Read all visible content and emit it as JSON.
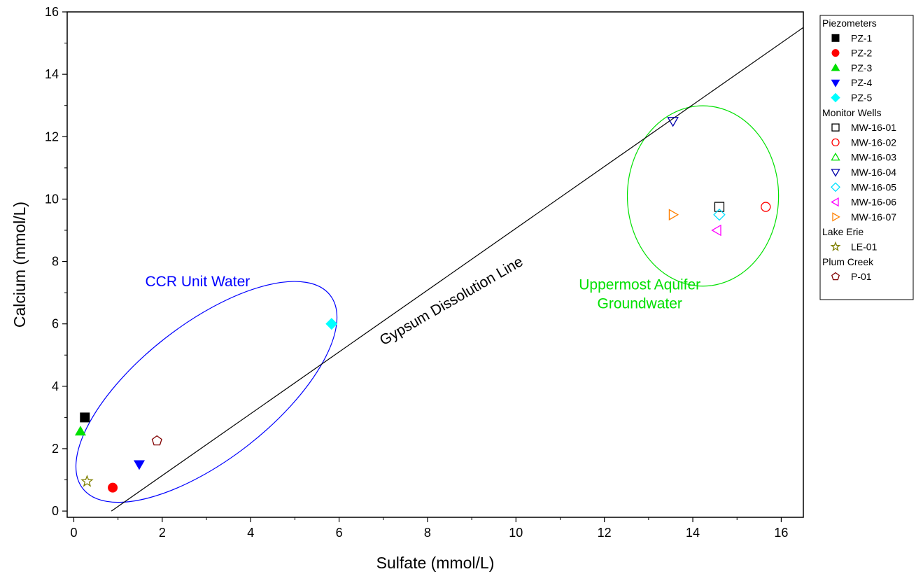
{
  "chart_data": {
    "type": "scatter",
    "xlabel": "Sulfate (mmol/L)",
    "ylabel": "Calcium (mmol/L)",
    "xlim": [
      -0.15,
      16.5
    ],
    "ylim": [
      -0.2,
      16
    ],
    "xticks": [
      0,
      2,
      4,
      6,
      8,
      10,
      12,
      14,
      16
    ],
    "yticks": [
      0,
      2,
      4,
      6,
      8,
      10,
      12,
      14,
      16
    ],
    "grid": false,
    "legend_placement": "outside-right",
    "legend": [
      {
        "type": "group",
        "label": "Piezometers"
      },
      {
        "type": "item",
        "series": 0
      },
      {
        "type": "item",
        "series": 1
      },
      {
        "type": "item",
        "series": 2
      },
      {
        "type": "item",
        "series": 3
      },
      {
        "type": "item",
        "series": 4
      },
      {
        "type": "group",
        "label": "Monitor Wells"
      },
      {
        "type": "item",
        "series": 5
      },
      {
        "type": "item",
        "series": 6
      },
      {
        "type": "item",
        "series": 7
      },
      {
        "type": "item",
        "series": 8
      },
      {
        "type": "item",
        "series": 9
      },
      {
        "type": "item",
        "series": 10
      },
      {
        "type": "item",
        "series": 11
      },
      {
        "type": "group",
        "label": "Lake Erie"
      },
      {
        "type": "item",
        "series": 12
      },
      {
        "type": "group",
        "label": "Plum Creek"
      },
      {
        "type": "item",
        "series": 13
      }
    ],
    "series": [
      {
        "name": "PZ-1",
        "marker": "square",
        "filled": true,
        "color": "#000000",
        "points": [
          [
            0.25,
            3.0
          ]
        ]
      },
      {
        "name": "PZ-2",
        "marker": "circle",
        "filled": true,
        "color": "#ff0000",
        "points": [
          [
            0.88,
            0.75
          ]
        ]
      },
      {
        "name": "PZ-3",
        "marker": "triangle-up",
        "filled": true,
        "color": "#00e000",
        "points": [
          [
            0.15,
            2.55
          ]
        ]
      },
      {
        "name": "PZ-4",
        "marker": "triangle-down",
        "filled": true,
        "color": "#0000ff",
        "points": [
          [
            1.48,
            1.5
          ]
        ]
      },
      {
        "name": "PZ-5",
        "marker": "diamond",
        "filled": true,
        "color": "#00ffff",
        "points": [
          [
            5.83,
            6.0
          ]
        ]
      },
      {
        "name": "MW-16-01",
        "marker": "square",
        "filled": false,
        "color": "#000000",
        "points": [
          [
            14.6,
            9.75
          ]
        ]
      },
      {
        "name": "MW-16-02",
        "marker": "circle",
        "filled": false,
        "color": "#ff0000",
        "points": [
          [
            15.65,
            9.75
          ]
        ]
      },
      {
        "name": "MW-16-03",
        "marker": "triangle-up",
        "filled": false,
        "color": "#00e000",
        "points": []
      },
      {
        "name": "MW-16-04",
        "marker": "triangle-down",
        "filled": false,
        "color": "#0000aa",
        "points": [
          [
            13.55,
            12.5
          ]
        ]
      },
      {
        "name": "MW-16-05",
        "marker": "diamond",
        "filled": false,
        "color": "#00e0ff",
        "points": [
          [
            14.6,
            9.5
          ]
        ]
      },
      {
        "name": "MW-16-06",
        "marker": "triangle-left",
        "filled": false,
        "color": "#ff00ff",
        "points": [
          [
            14.55,
            9.0
          ]
        ]
      },
      {
        "name": "MW-16-07",
        "marker": "triangle-right",
        "filled": false,
        "color": "#ff8000",
        "points": [
          [
            13.55,
            9.5
          ]
        ]
      },
      {
        "name": "LE-01",
        "marker": "star",
        "filled": false,
        "color": "#808000",
        "points": [
          [
            0.3,
            0.95
          ]
        ]
      },
      {
        "name": "P-01",
        "marker": "pentagon",
        "filled": false,
        "color": "#800000",
        "points": [
          [
            1.88,
            2.25
          ]
        ]
      }
    ],
    "reference_line": {
      "label": "Gypsum Dissolution Line",
      "from": [
        0.85,
        0.0
      ],
      "to": [
        16.5,
        15.5
      ],
      "color": "#000000",
      "label_at": [
        7.0,
        5.3
      ],
      "label_angle": -30
    },
    "annotations": [
      {
        "text": "CCR Unit Water",
        "x": 2.8,
        "y": 7.2,
        "color": "#0000ff"
      },
      {
        "text": "Uppermost Aquifer",
        "x": 12.8,
        "y": 7.1,
        "color": "#00e000"
      },
      {
        "text": "Groundwater",
        "x": 12.8,
        "y": 6.5,
        "color": "#00e000"
      }
    ],
    "ellipses": [
      {
        "name": "ccr-unit-water-ellipse",
        "center": [
          3.0,
          3.82
        ],
        "rx_data": 3.55,
        "ry_data": 2.17,
        "rotation": -38,
        "color": "#0000ff"
      },
      {
        "name": "uppermost-aquifer-ellipse",
        "center": [
          14.23,
          10.1
        ],
        "rx_data": 1.71,
        "ry_data": 2.89,
        "rotation": 0,
        "color": "#00e000"
      }
    ]
  }
}
